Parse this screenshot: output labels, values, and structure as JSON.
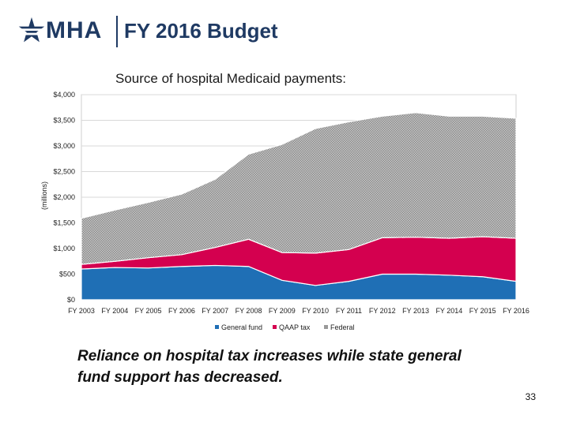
{
  "header": {
    "logo_text": "MHA",
    "title": "FY 2016 Budget"
  },
  "chart_data": {
    "type": "area",
    "stacked": true,
    "title": "Source of hospital Medicaid payments:",
    "ylabel": "(millions)",
    "xlabel": "",
    "ylim": [
      0,
      4000
    ],
    "yticks": [
      "$0",
      "$500",
      "$1,000",
      "$1,500",
      "$2,000",
      "$2,500",
      "$3,000",
      "$3,500",
      "$4,000"
    ],
    "ytick_values": [
      0,
      500,
      1000,
      1500,
      2000,
      2500,
      3000,
      3500,
      4000
    ],
    "categories": [
      "FY 2003",
      "FY 2004",
      "FY 2005",
      "FY 2006",
      "FY 2007",
      "FY 2008",
      "FY 2009",
      "FY 2010",
      "FY 2011",
      "FY 2012",
      "FY 2013",
      "FY 2014",
      "FY 2015",
      "FY 2016"
    ],
    "series": [
      {
        "name": "General fund",
        "color": "#1f6fb5",
        "values": [
          600,
          630,
          620,
          650,
          670,
          650,
          380,
          280,
          360,
          500,
          500,
          480,
          450,
          360
        ]
      },
      {
        "name": "QAAP tax",
        "color": "#d4004f",
        "values": [
          90,
          120,
          200,
          230,
          350,
          530,
          540,
          630,
          620,
          710,
          720,
          720,
          780,
          840
        ]
      },
      {
        "name": "Federal",
        "color": "#b5b5b5",
        "values": [
          900,
          1000,
          1080,
          1180,
          1330,
          1660,
          2110,
          2430,
          2490,
          2370,
          2430,
          2380,
          2350,
          2340
        ]
      }
    ],
    "grid": "horizontal",
    "legend_position": "bottom"
  },
  "caption": "Reliance on hospital tax increases while state general fund support has decreased.",
  "page_number": "33"
}
